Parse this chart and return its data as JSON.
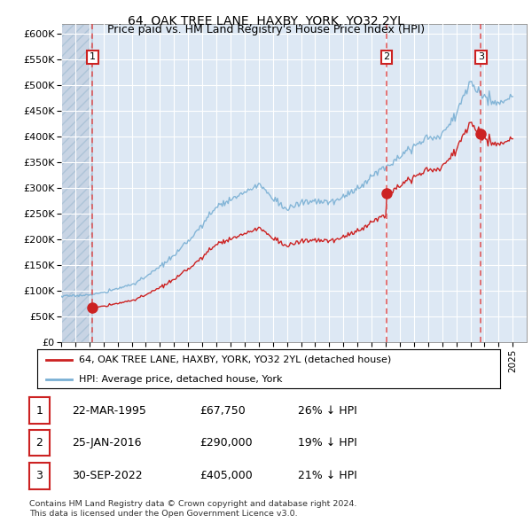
{
  "title": "64, OAK TREE LANE, HAXBY, YORK, YO32 2YL",
  "subtitle": "Price paid vs. HM Land Registry's House Price Index (HPI)",
  "ylim": [
    0,
    620000
  ],
  "yticks": [
    0,
    50000,
    100000,
    150000,
    200000,
    250000,
    300000,
    350000,
    400000,
    450000,
    500000,
    550000,
    600000
  ],
  "xlim_start": 1993.0,
  "xlim_end": 2025.99,
  "legend_line1": "64, OAK TREE LANE, HAXBY, YORK, YO32 2YL (detached house)",
  "legend_line2": "HPI: Average price, detached house, York",
  "footer1": "Contains HM Land Registry data © Crown copyright and database right 2024.",
  "footer2": "This data is licensed under the Open Government Licence v3.0.",
  "sales": [
    {
      "num": 1,
      "date_dec": 1995.22,
      "price": 67750,
      "label": "1"
    },
    {
      "num": 2,
      "date_dec": 2016.07,
      "price": 290000,
      "label": "2"
    },
    {
      "num": 3,
      "date_dec": 2022.75,
      "price": 405000,
      "label": "3"
    }
  ],
  "sale_table": [
    {
      "num": "1",
      "date": "22-MAR-1995",
      "price": "£67,750",
      "hpi": "26% ↓ HPI"
    },
    {
      "num": "2",
      "date": "25-JAN-2016",
      "price": "£290,000",
      "hpi": "19% ↓ HPI"
    },
    {
      "num": "3",
      "date": "30-SEP-2022",
      "price": "£405,000",
      "hpi": "21% ↓ HPI"
    }
  ],
  "hpi_color": "#7ab0d4",
  "price_color": "#cc2222",
  "sale_color": "#cc2222",
  "vline_color": "#e05050",
  "box_edge_color": "#cc2222",
  "bg_color": "#dde8f4",
  "hatch_bg_color": "#c8d4e4",
  "grid_color": "#ffffff",
  "hpi_yearly": [
    90000,
    91000,
    93000,
    97000,
    105000,
    113000,
    127000,
    148000,
    168000,
    198000,
    228000,
    265000,
    278000,
    290000,
    308000,
    282000,
    258000,
    272000,
    275000,
    272000,
    282000,
    300000,
    323000,
    342000,
    365000,
    382000,
    397000,
    403000,
    445000,
    508000,
    478000,
    465000,
    478000
  ]
}
